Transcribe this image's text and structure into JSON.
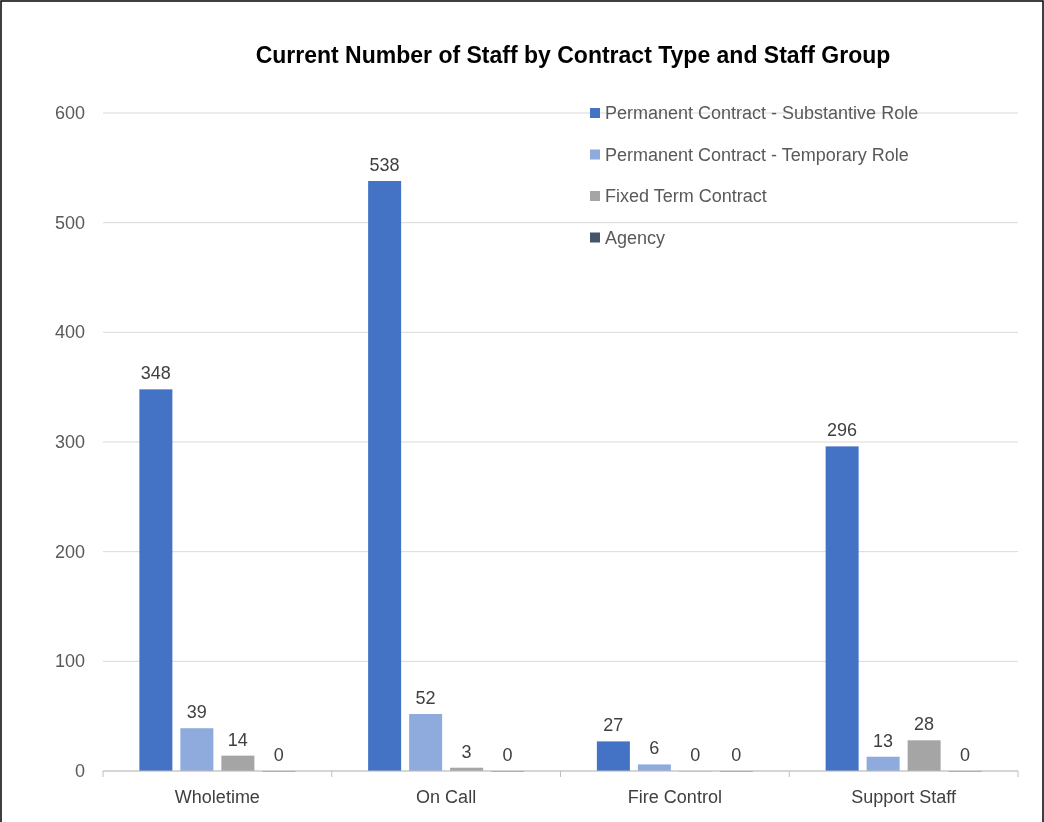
{
  "chart_data": {
    "type": "bar",
    "title": "Current Number of Staff by Contract Type and Staff Group",
    "categories": [
      "Wholetime",
      "On Call",
      "Fire Control",
      "Support Staff"
    ],
    "series": [
      {
        "name": "Permanent Contract - Substantive Role",
        "color": "#4472c4",
        "values": [
          348,
          538,
          27,
          296
        ]
      },
      {
        "name": "Permanent Contract - Temporary Role",
        "color": "#8faadc",
        "values": [
          39,
          52,
          6,
          13
        ]
      },
      {
        "name": "Fixed Term Contract",
        "color": "#a5a5a5",
        "values": [
          14,
          3,
          0,
          28
        ]
      },
      {
        "name": "Agency",
        "color": "#44546a",
        "values": [
          0,
          0,
          0,
          0
        ]
      }
    ],
    "ylim": [
      0,
      600
    ],
    "yticks": [
      0,
      100,
      200,
      300,
      400,
      500,
      600
    ],
    "grid": "y",
    "legend": "top right",
    "data_labels": true
  }
}
